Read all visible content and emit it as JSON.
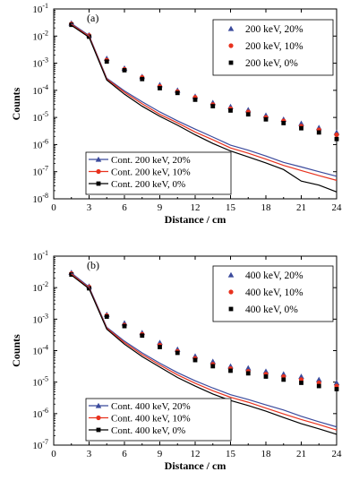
{
  "figure": {
    "colors": {
      "s20": "#3b4a9c",
      "s10": "#e8321e",
      "s0": "#000000"
    },
    "x_ticks": [
      0,
      3,
      6,
      9,
      12,
      15,
      18,
      21,
      24
    ],
    "y_exponents": [
      -8,
      -7,
      -6,
      -5,
      -4,
      -3,
      -2,
      -1
    ],
    "y_tick_base": "10"
  },
  "chart_data": [
    {
      "type": "scatter",
      "panel_label": "(a)",
      "xlabel": "Distance / cm",
      "ylabel": "Counts",
      "xlim": [
        0,
        24
      ],
      "ylim": [
        1e-08,
        0.1
      ],
      "y_scale": "log",
      "grid": false,
      "legend_placement": [
        "top-right",
        "bottom-left"
      ],
      "x": [
        1.5,
        3,
        4.5,
        6,
        7.5,
        9,
        10.5,
        12,
        13.5,
        15,
        16.5,
        18,
        19.5,
        21,
        22.5,
        24
      ],
      "series": [
        {
          "name": "200 keV, 20%",
          "kind": "points",
          "marker": "triangle",
          "color": "#3b4a9c",
          "values": [
            0.03,
            0.011,
            0.0015,
            0.00065,
            0.00032,
            0.00016,
            0.0001,
            6e-05,
            3.5e-05,
            2.5e-05,
            1.9e-05,
            1.2e-05,
            8.5e-06,
            6e-06,
            4.2e-06,
            2.8e-06
          ]
        },
        {
          "name": "200 keV, 10%",
          "kind": "points",
          "marker": "circle",
          "color": "#e8321e",
          "values": [
            0.028,
            0.0105,
            0.0013,
            0.0006,
            0.0003,
            0.00014,
            9e-05,
            5.5e-05,
            3e-05,
            2.1e-05,
            1.6e-05,
            1e-05,
            7.5e-06,
            4.8e-06,
            3.5e-06,
            2.3e-06
          ]
        },
        {
          "name": "200 keV, 0%",
          "kind": "points",
          "marker": "square",
          "color": "#000000",
          "values": [
            0.026,
            0.0095,
            0.00115,
            0.00055,
            0.00026,
            0.00012,
            8e-05,
            4.5e-05,
            2.6e-05,
            1.8e-05,
            1.3e-05,
            8.5e-06,
            6.2e-06,
            4e-06,
            2.8e-06,
            1.6e-06
          ]
        },
        {
          "name": "Cont. 200 keV, 20%",
          "kind": "line",
          "marker": "triangle",
          "color": "#3b4a9c",
          "values": [
            0.029,
            0.0105,
            0.00028,
            9.5e-05,
            3.8e-05,
            1.6e-05,
            7.5e-06,
            3.7e-06,
            1.9e-06,
            9.5e-07,
            6.2e-07,
            3.8e-07,
            2.2e-07,
            1.5e-07,
            1e-07,
            6.8e-08
          ]
        },
        {
          "name": "Cont. 200 keV, 10%",
          "kind": "line",
          "marker": "circle",
          "color": "#e8321e",
          "values": [
            0.027,
            0.0098,
            0.00026,
            8.5e-05,
            3.2e-05,
            1.3e-05,
            6.3e-06,
            2.9e-06,
            1.5e-06,
            7.5e-07,
            4.8e-07,
            2.9e-07,
            1.7e-07,
            1.1e-07,
            7.2e-08,
            4.8e-08
          ]
        },
        {
          "name": "Cont. 200 keV, 0%",
          "kind": "line",
          "marker": "square",
          "color": "#000000",
          "values": [
            0.025,
            0.009,
            0.00024,
            7.2e-05,
            2.6e-05,
            1.1e-05,
            5.2e-06,
            2.3e-06,
            1.1e-06,
            5.8e-07,
            3.5e-07,
            2.1e-07,
            1.2e-07,
            4.5e-08,
            3.2e-08,
            1.8e-08
          ]
        }
      ]
    },
    {
      "type": "scatter",
      "panel_label": "(b)",
      "xlabel": "Distance / cm",
      "ylabel": "Counts",
      "xlim": [
        0,
        24
      ],
      "ylim": [
        1e-07,
        0.1
      ],
      "y_scale": "log",
      "grid": false,
      "legend_placement": [
        "top-right",
        "bottom-left"
      ],
      "x": [
        1.5,
        3,
        4.5,
        6,
        7.5,
        9,
        10.5,
        12,
        13.5,
        15,
        16.5,
        18,
        19.5,
        21,
        22.5,
        24
      ],
      "series": [
        {
          "name": "400 keV, 20%",
          "kind": "points",
          "marker": "triangle",
          "color": "#3b4a9c",
          "values": [
            0.03,
            0.011,
            0.0014,
            0.00075,
            0.00037,
            0.00018,
            0.00011,
            6.7e-05,
            4.5e-05,
            3.2e-05,
            2.8e-05,
            2.2e-05,
            1.8e-05,
            1.5e-05,
            1.2e-05,
            9.5e-06
          ]
        },
        {
          "name": "400 keV, 10%",
          "kind": "points",
          "marker": "circle",
          "color": "#e8321e",
          "values": [
            0.028,
            0.0105,
            0.0013,
            0.00065,
            0.00033,
            0.00015,
            9.5e-05,
            5.7e-05,
            3.7e-05,
            2.7e-05,
            2.2e-05,
            1.8e-05,
            1.5e-05,
            1.2e-05,
            9.5e-06,
            7.5e-06
          ]
        },
        {
          "name": "400 keV, 0%",
          "kind": "points",
          "marker": "square",
          "color": "#000000",
          "values": [
            0.026,
            0.0095,
            0.0012,
            0.0006,
            0.0003,
            0.00013,
            8.5e-05,
            5e-05,
            3.2e-05,
            2.3e-05,
            1.9e-05,
            1.5e-05,
            1.2e-05,
            9.5e-06,
            7.5e-06,
            6e-06
          ]
        },
        {
          "name": "Cont. 400 keV, 20%",
          "kind": "line",
          "marker": "triangle",
          "color": "#3b4a9c",
          "values": [
            0.029,
            0.0105,
            0.00055,
            0.0002,
            8.5e-05,
            4e-05,
            2e-05,
            1.1e-05,
            6.5e-06,
            4e-06,
            2.8e-06,
            1.9e-06,
            1.3e-06,
            8.2e-07,
            5.5e-07,
            3.8e-07
          ]
        },
        {
          "name": "Cont. 400 keV, 10%",
          "kind": "line",
          "marker": "circle",
          "color": "#e8321e",
          "values": [
            0.027,
            0.0098,
            0.00052,
            0.00018,
            7.5e-05,
            3.5e-05,
            1.7e-05,
            9.2e-06,
            5.3e-06,
            3.3e-06,
            2.3e-06,
            1.5e-06,
            9.8e-07,
            6.5e-07,
            4.5e-07,
            3e-07
          ]
        },
        {
          "name": "Cont. 400 keV, 0%",
          "kind": "line",
          "marker": "square",
          "color": "#000000",
          "values": [
            0.025,
            0.0092,
            0.00048,
            0.00016,
            6.5e-05,
            3e-05,
            1.4e-05,
            7.5e-06,
            4.2e-06,
            2.6e-06,
            1.8e-06,
            1.2e-06,
            7.5e-07,
            4.8e-07,
            3.3e-07,
            2.2e-07
          ]
        }
      ]
    }
  ]
}
